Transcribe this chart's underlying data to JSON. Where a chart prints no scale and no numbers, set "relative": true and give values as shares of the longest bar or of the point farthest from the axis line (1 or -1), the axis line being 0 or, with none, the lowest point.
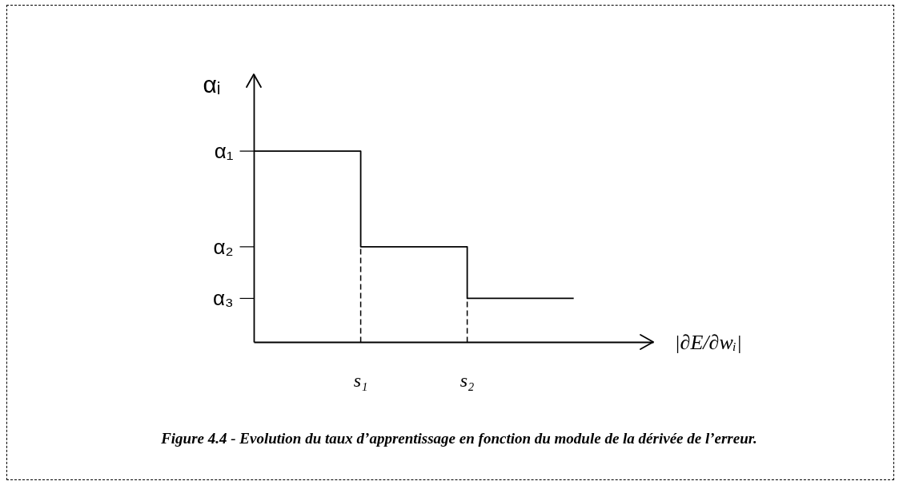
{
  "chart_data": {
    "type": "step",
    "title": "Figure 4.4 - Evolution du taux d’apprentissage en fonction du module de la dérivée de l’erreur.",
    "xlabel": "|∂E/∂wᵢ|",
    "ylabel": "αᵢ",
    "relative": true,
    "categories": [
      null,
      "s₁",
      "s₂",
      null
    ],
    "series": [
      {
        "color": "#000000",
        "values": [
          1,
          0.5,
          0.23,
          0.23
        ]
      }
    ],
    "annotations": [
      "α₁",
      "α₂",
      "α₃"
    ],
    "ref_lines": [
      {
        "axis": "x",
        "value": "s₁",
        "color": "#000000",
        "line_style": "dashed"
      },
      {
        "axis": "x",
        "value": "s₂",
        "color": "#000000",
        "line_style": "dashed"
      }
    ],
    "tick_labels": "x",
    "line_style": "solid",
    "marker": "none"
  }
}
